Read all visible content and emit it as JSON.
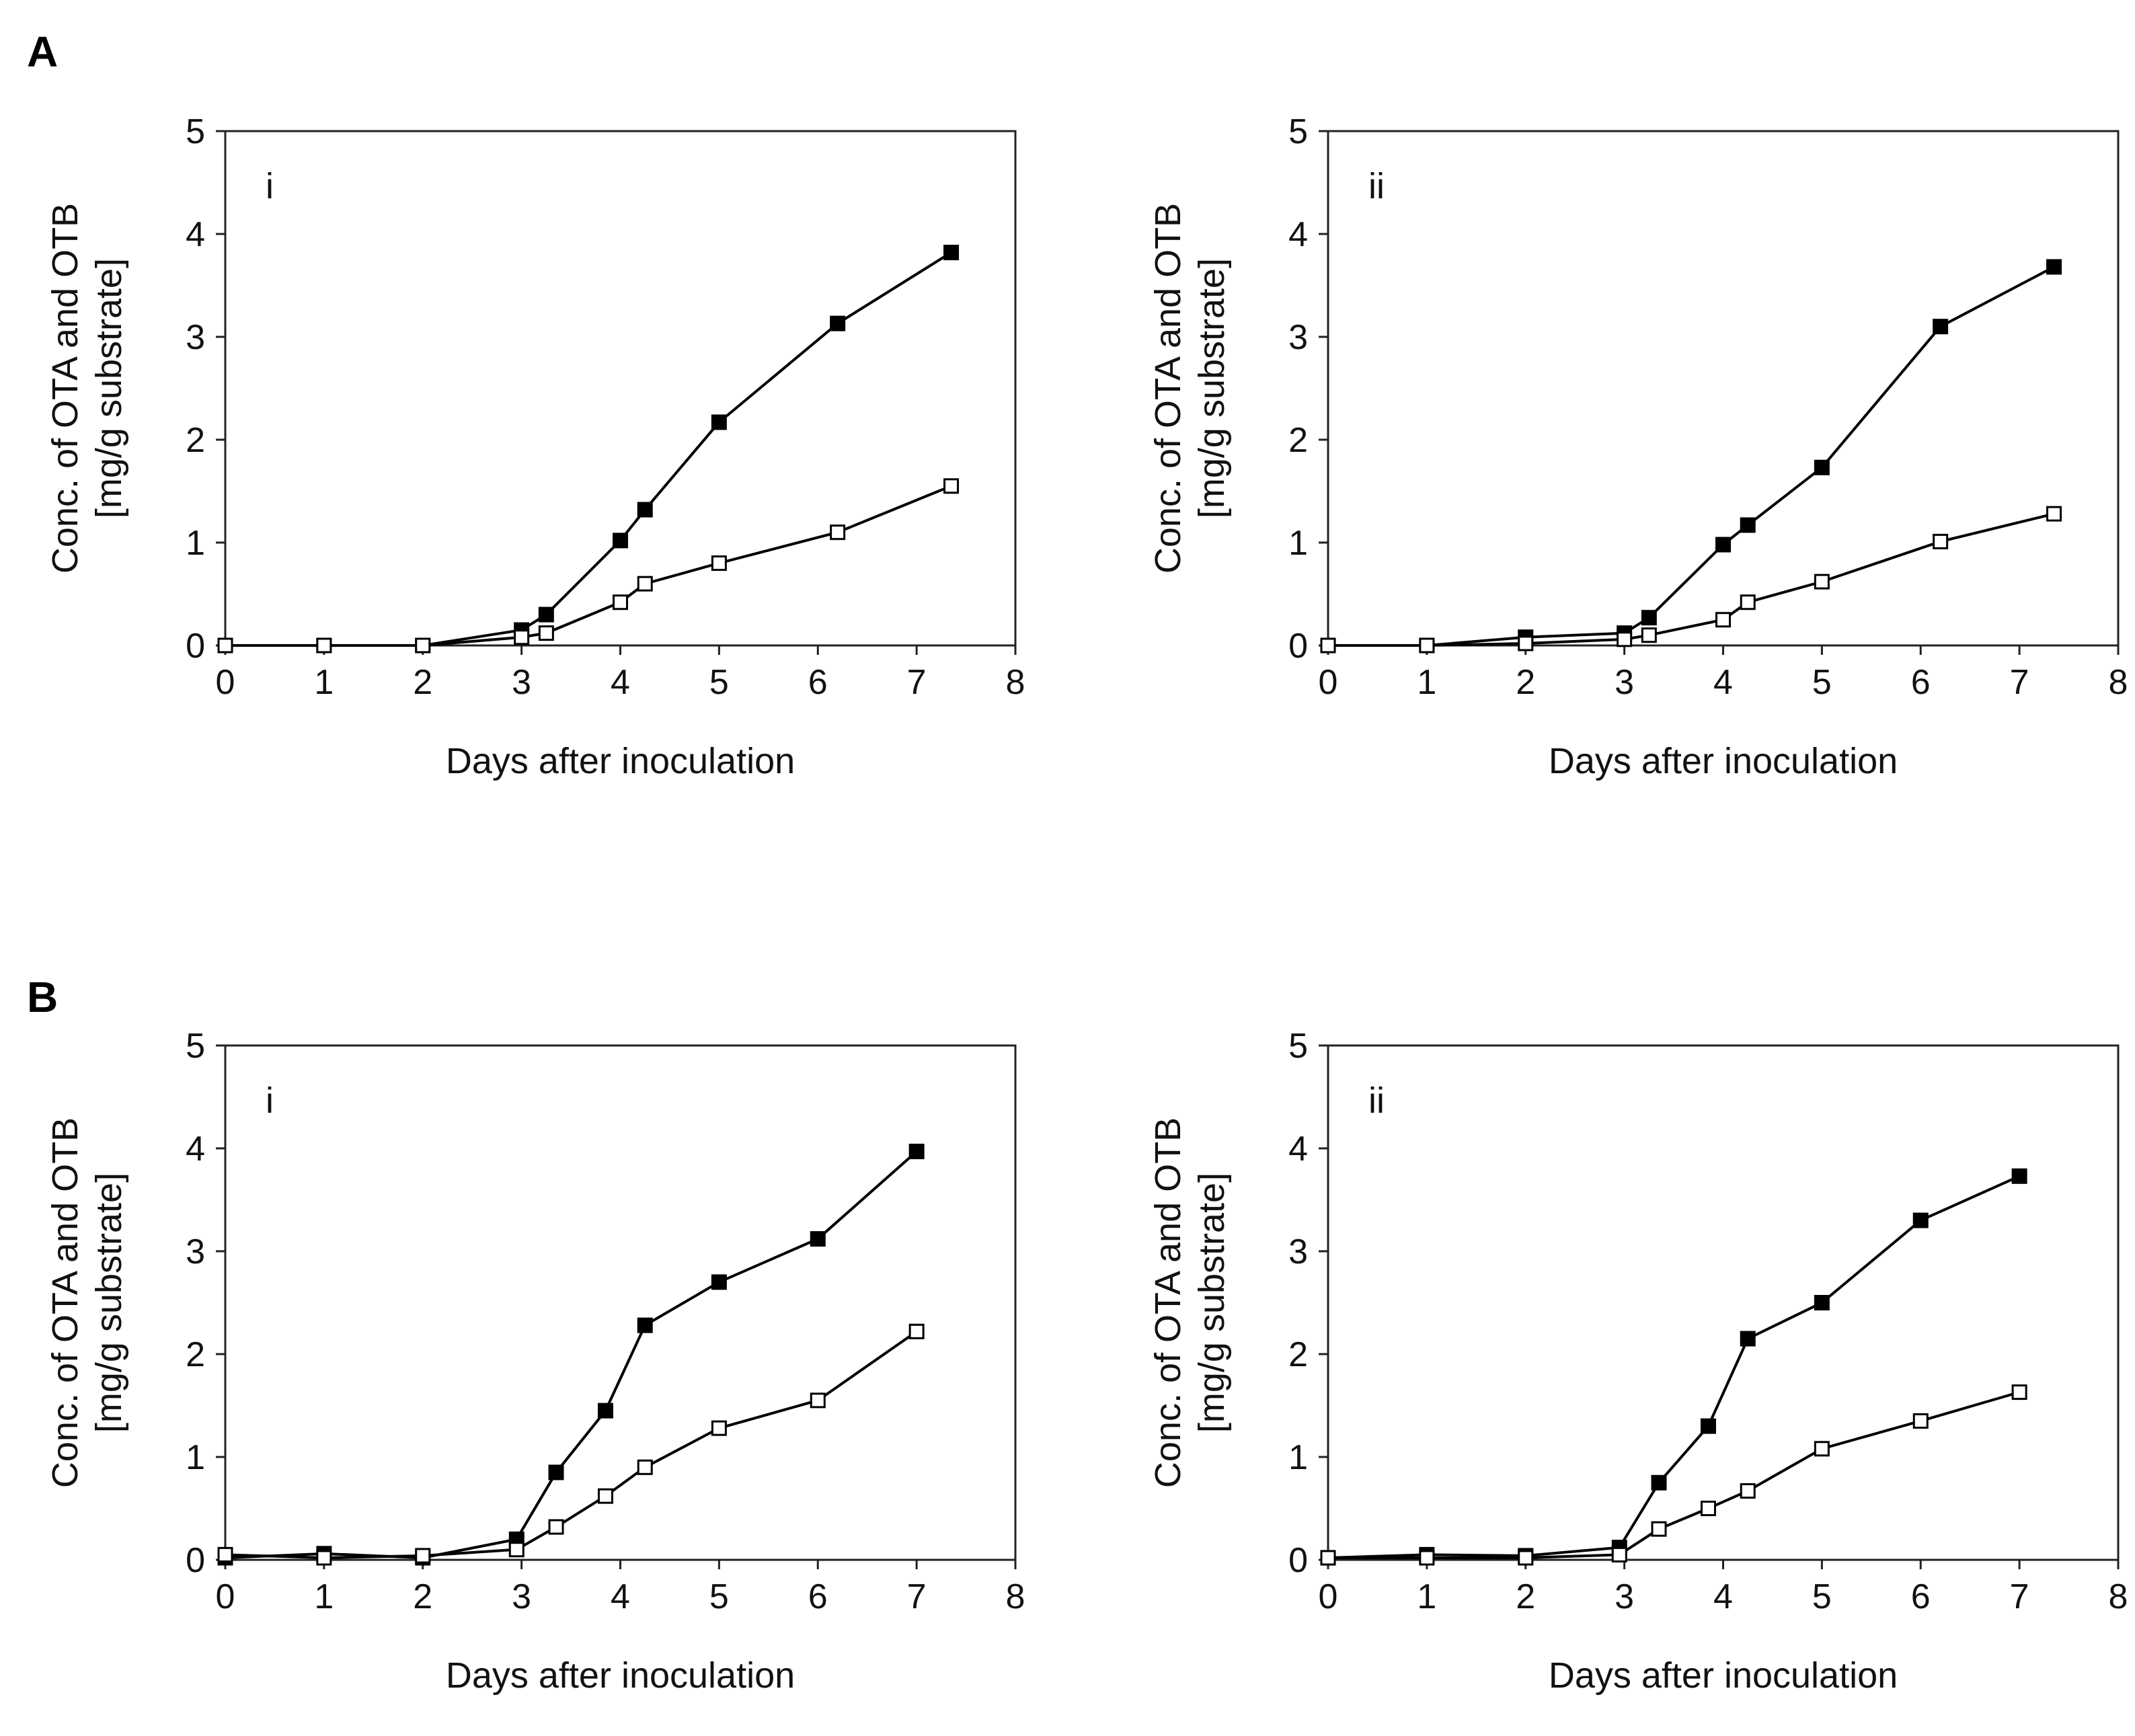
{
  "figure": {
    "panel_letters": [
      "A",
      "B"
    ]
  },
  "chart_data": [
    {
      "type": "line",
      "panel": "A",
      "label": "i",
      "xlabel": "Days after inoculation",
      "ylabel_line1": "Conc. of OTA and OTB",
      "ylabel_line2": "[mg/g substrate]",
      "xlim": [
        0,
        8
      ],
      "ylim": [
        0,
        5
      ],
      "xticks": [
        0,
        1,
        2,
        3,
        4,
        5,
        6,
        7,
        8
      ],
      "yticks": [
        0,
        1,
        2,
        3,
        4,
        5
      ],
      "grid": false,
      "series": [
        {
          "marker": "filled-square",
          "color": "#000000",
          "x": [
            0,
            1,
            2,
            3,
            3.25,
            4,
            4.25,
            5,
            6.2,
            7.35
          ],
          "y": [
            0,
            0,
            0,
            0.15,
            0.3,
            1.02,
            1.32,
            2.17,
            3.13,
            3.82
          ]
        },
        {
          "marker": "open-square",
          "color": "#000000",
          "x": [
            0,
            1,
            2,
            3,
            3.25,
            4,
            4.25,
            5,
            6.2,
            7.35
          ],
          "y": [
            0,
            0,
            0,
            0.08,
            0.12,
            0.42,
            0.6,
            0.8,
            1.1,
            1.55
          ]
        }
      ]
    },
    {
      "type": "line",
      "panel": "A",
      "label": "ii",
      "xlabel": "Days after inoculation",
      "ylabel_line1": "Conc. of OTA and OTB",
      "ylabel_line2": "[mg/g substrate]",
      "xlim": [
        0,
        8
      ],
      "ylim": [
        0,
        5
      ],
      "xticks": [
        0,
        1,
        2,
        3,
        4,
        5,
        6,
        7,
        8
      ],
      "yticks": [
        0,
        1,
        2,
        3,
        4,
        5
      ],
      "grid": false,
      "series": [
        {
          "marker": "filled-square",
          "color": "#000000",
          "x": [
            0,
            1,
            2,
            3,
            3.25,
            4,
            4.25,
            5,
            6.2,
            7.35
          ],
          "y": [
            0,
            0,
            0.08,
            0.12,
            0.27,
            0.98,
            1.17,
            1.73,
            3.1,
            3.68
          ]
        },
        {
          "marker": "open-square",
          "color": "#000000",
          "x": [
            0,
            1,
            2,
            3,
            3.25,
            4,
            4.25,
            5,
            6.2,
            7.35
          ],
          "y": [
            0,
            0,
            0.02,
            0.06,
            0.1,
            0.25,
            0.42,
            0.62,
            1.01,
            1.28
          ]
        }
      ]
    },
    {
      "type": "line",
      "panel": "B",
      "label": "i",
      "xlabel": "Days after inoculation",
      "ylabel_line1": "Conc. of OTA and OTB",
      "ylabel_line2": "[mg/g substrate]",
      "xlim": [
        0,
        8
      ],
      "ylim": [
        0,
        5
      ],
      "xticks": [
        0,
        1,
        2,
        3,
        4,
        5,
        6,
        7,
        8
      ],
      "yticks": [
        0,
        1,
        2,
        3,
        4,
        5
      ],
      "grid": false,
      "series": [
        {
          "marker": "filled-square",
          "color": "#000000",
          "x": [
            0,
            1,
            2,
            2.95,
            3.35,
            3.85,
            4.25,
            5,
            6,
            7
          ],
          "y": [
            0.02,
            0.06,
            0.02,
            0.2,
            0.85,
            1.45,
            2.28,
            2.7,
            3.12,
            3.97
          ]
        },
        {
          "marker": "open-square",
          "color": "#000000",
          "x": [
            0,
            1,
            2,
            2.95,
            3.35,
            3.85,
            4.25,
            5,
            6,
            7
          ],
          "y": [
            0.05,
            0.02,
            0.04,
            0.1,
            0.32,
            0.62,
            0.9,
            1.28,
            1.55,
            2.22
          ]
        }
      ]
    },
    {
      "type": "line",
      "panel": "B",
      "label": "ii",
      "xlabel": "Days after inoculation",
      "ylabel_line1": "Conc. of OTA and OTB",
      "ylabel_line2": "[mg/g substrate]",
      "xlim": [
        0,
        8
      ],
      "ylim": [
        0,
        5
      ],
      "xticks": [
        0,
        1,
        2,
        3,
        4,
        5,
        6,
        7,
        8
      ],
      "yticks": [
        0,
        1,
        2,
        3,
        4,
        5
      ],
      "grid": false,
      "series": [
        {
          "marker": "filled-square",
          "color": "#000000",
          "x": [
            0,
            1,
            2,
            2.95,
            3.35,
            3.85,
            4.25,
            5,
            6,
            7
          ],
          "y": [
            0.02,
            0.05,
            0.04,
            0.12,
            0.75,
            1.3,
            2.15,
            2.5,
            3.3,
            3.73
          ]
        },
        {
          "marker": "open-square",
          "color": "#000000",
          "x": [
            0,
            1,
            2,
            2.95,
            3.35,
            3.85,
            4.25,
            5,
            6,
            7
          ],
          "y": [
            0.02,
            0.02,
            0.02,
            0.05,
            0.3,
            0.5,
            0.67,
            1.08,
            1.35,
            1.63
          ]
        }
      ]
    }
  ]
}
